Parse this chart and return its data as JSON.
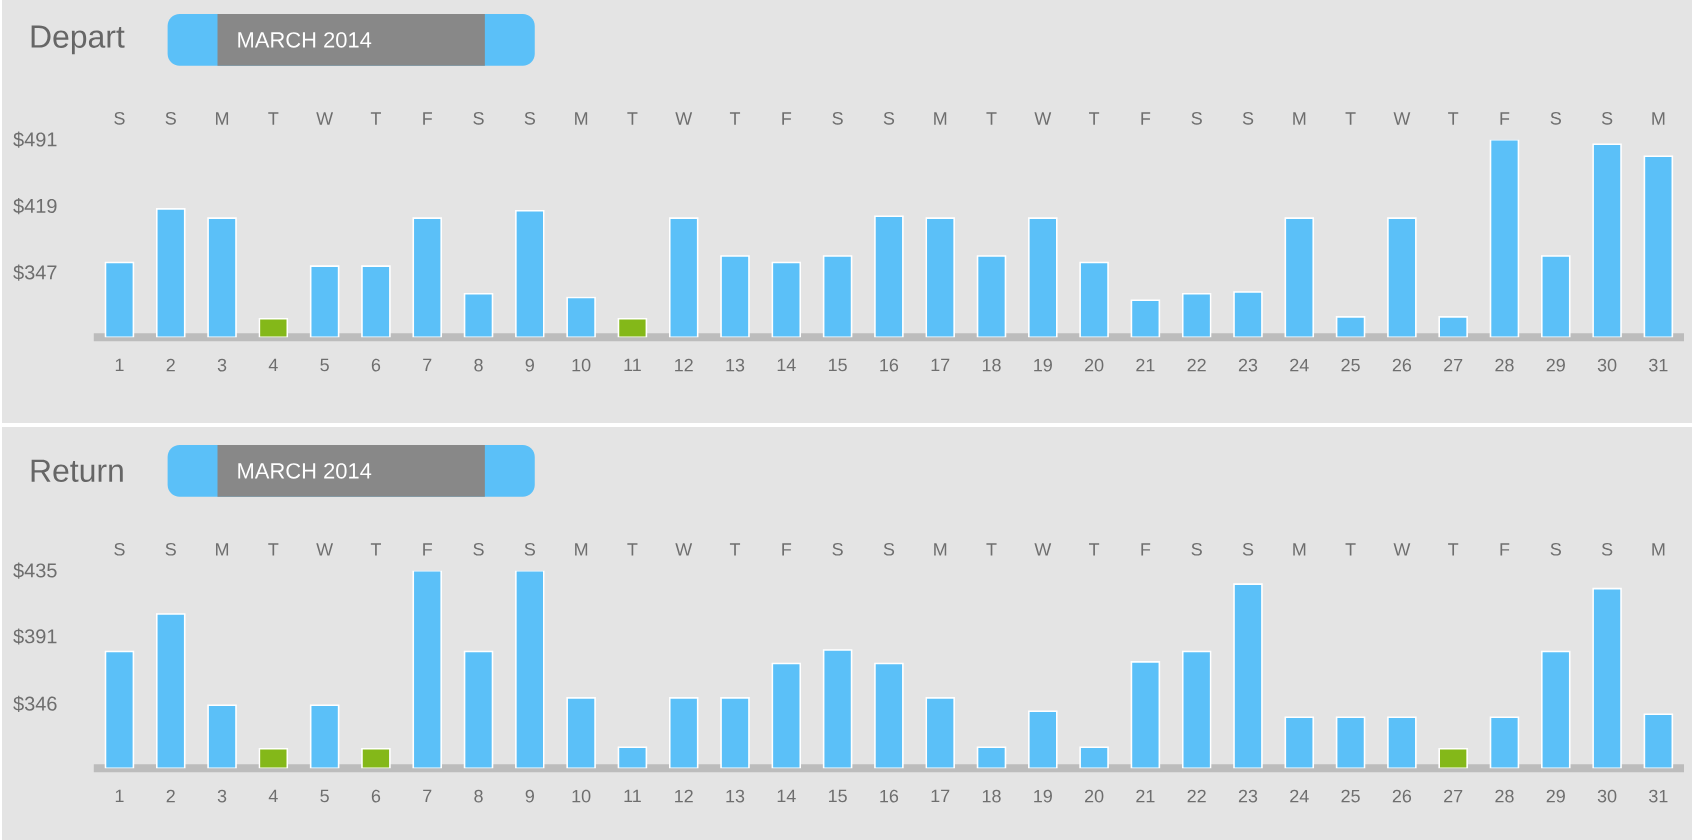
{
  "chart_data": [
    {
      "type": "bar",
      "title": "Depart",
      "subtitle": "MARCH 2014",
      "categories": [
        "1",
        "2",
        "3",
        "4",
        "5",
        "6",
        "7",
        "8",
        "9",
        "10",
        "11",
        "12",
        "13",
        "14",
        "15",
        "16",
        "17",
        "18",
        "19",
        "20",
        "21",
        "22",
        "23",
        "24",
        "25",
        "26",
        "27",
        "28",
        "29",
        "30",
        "31"
      ],
      "annotations": [
        "S",
        "S",
        "M",
        "T",
        "W",
        "T",
        "F",
        "S",
        "S",
        "M",
        "T",
        "W",
        "T",
        "F",
        "S",
        "S",
        "M",
        "T",
        "W",
        "T",
        "F",
        "S",
        "S",
        "M",
        "T",
        "W",
        "T",
        "F",
        "S",
        "S",
        "M"
      ],
      "values": [
        358,
        416,
        406,
        297,
        354,
        354,
        406,
        324,
        414,
        320,
        297,
        406,
        365,
        358,
        365,
        408,
        406,
        365,
        406,
        358,
        317,
        324,
        326,
        406,
        299,
        406,
        299,
        491,
        365,
        486,
        473
      ],
      "colors": [
        "#5bc0f8",
        "#5bc0f8",
        "#5bc0f8",
        "#84b819",
        "#5bc0f8",
        "#5bc0f8",
        "#5bc0f8",
        "#5bc0f8",
        "#5bc0f8",
        "#5bc0f8",
        "#84b819",
        "#5bc0f8",
        "#5bc0f8",
        "#5bc0f8",
        "#5bc0f8",
        "#5bc0f8",
        "#5bc0f8",
        "#5bc0f8",
        "#5bc0f8",
        "#5bc0f8",
        "#5bc0f8",
        "#5bc0f8",
        "#5bc0f8",
        "#5bc0f8",
        "#5bc0f8",
        "#5bc0f8",
        "#5bc0f8",
        "#5bc0f8",
        "#5bc0f8",
        "#5bc0f8",
        "#5bc0f8"
      ],
      "ylim": [
        277,
        491
      ],
      "yticks": [
        {
          "value": 347,
          "label": "$347"
        },
        {
          "value": 419,
          "label": "$419"
        },
        {
          "value": 491,
          "label": "$491"
        }
      ]
    },
    {
      "type": "bar",
      "title": "Return",
      "subtitle": "MARCH 2014",
      "categories": [
        "1",
        "2",
        "3",
        "4",
        "5",
        "6",
        "7",
        "8",
        "9",
        "10",
        "11",
        "12",
        "13",
        "14",
        "15",
        "16",
        "17",
        "18",
        "19",
        "20",
        "21",
        "22",
        "23",
        "24",
        "25",
        "26",
        "27",
        "28",
        "29",
        "30",
        "31"
      ],
      "annotations": [
        "S",
        "S",
        "M",
        "T",
        "W",
        "T",
        "F",
        "S",
        "S",
        "M",
        "T",
        "W",
        "T",
        "F",
        "S",
        "S",
        "M",
        "T",
        "W",
        "T",
        "F",
        "S",
        "S",
        "M",
        "T",
        "W",
        "T",
        "F",
        "S",
        "S",
        "M"
      ],
      "values": [
        381,
        406,
        345,
        316,
        345,
        316,
        435,
        381,
        435,
        350,
        317,
        350,
        350,
        373,
        382,
        373,
        350,
        317,
        341,
        317,
        374,
        381,
        426,
        337,
        337,
        337,
        316,
        337,
        381,
        423,
        339
      ],
      "colors": [
        "#5bc0f8",
        "#5bc0f8",
        "#5bc0f8",
        "#84b819",
        "#5bc0f8",
        "#84b819",
        "#5bc0f8",
        "#5bc0f8",
        "#5bc0f8",
        "#5bc0f8",
        "#5bc0f8",
        "#5bc0f8",
        "#5bc0f8",
        "#5bc0f8",
        "#5bc0f8",
        "#5bc0f8",
        "#5bc0f8",
        "#5bc0f8",
        "#5bc0f8",
        "#5bc0f8",
        "#5bc0f8",
        "#5bc0f8",
        "#5bc0f8",
        "#5bc0f8",
        "#5bc0f8",
        "#5bc0f8",
        "#84b819",
        "#5bc0f8",
        "#5bc0f8",
        "#5bc0f8",
        "#5bc0f8"
      ],
      "ylim": [
        303,
        435
      ],
      "yticks": [
        {
          "value": 346,
          "label": "$346"
        },
        {
          "value": 391,
          "label": "$391"
        },
        {
          "value": 435,
          "label": "$435"
        }
      ]
    }
  ]
}
